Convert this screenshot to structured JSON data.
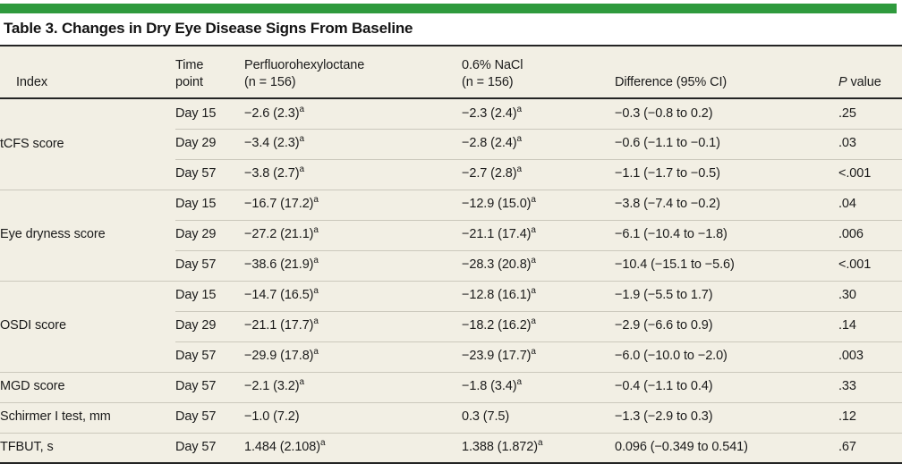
{
  "title": "Table 3. Changes in Dry Eye Disease Signs From Baseline",
  "colors": {
    "accent_bar": "#2f9a3d",
    "table_background": "#f2efe4",
    "dark_rule": "#242424",
    "row_divider": "#cbc8bc"
  },
  "columns": [
    {
      "key": "index",
      "label": "Index"
    },
    {
      "key": "time-point",
      "label": "Time\npoint"
    },
    {
      "key": "pfho",
      "label": "Perfluorohexyloctane\n(n = 156)"
    },
    {
      "key": "nacl",
      "label": "0.6% NaCl\n(n = 156)"
    },
    {
      "key": "difference",
      "label": "Difference (95% CI)"
    },
    {
      "key": "p-value",
      "label": "P value",
      "italic_first_word": true
    }
  ],
  "footnote_marker": "a",
  "groups": [
    {
      "index": "tCFS score",
      "rows": [
        {
          "time": "Day 15",
          "pfho": "−2.6 (2.3)",
          "pfho_sup": "a",
          "nacl": "−2.3 (2.4)",
          "nacl_sup": "a",
          "difference": "−0.3 (−0.8 to 0.2)",
          "p_value": ".25"
        },
        {
          "time": "Day 29",
          "pfho": "−3.4 (2.3)",
          "pfho_sup": "a",
          "nacl": "−2.8 (2.4)",
          "nacl_sup": "a",
          "difference": "−0.6 (−1.1 to −0.1)",
          "p_value": ".03"
        },
        {
          "time": "Day 57",
          "pfho": "−3.8 (2.7)",
          "pfho_sup": "a",
          "nacl": "−2.7 (2.8)",
          "nacl_sup": "a",
          "difference": "−1.1 (−1.7 to −0.5)",
          "p_value": "<.001"
        }
      ]
    },
    {
      "index": "Eye dryness score",
      "rows": [
        {
          "time": "Day 15",
          "pfho": "−16.7 (17.2)",
          "pfho_sup": "a",
          "nacl": "−12.9 (15.0)",
          "nacl_sup": "a",
          "difference": "−3.8 (−7.4 to −0.2)",
          "p_value": ".04"
        },
        {
          "time": "Day 29",
          "pfho": "−27.2 (21.1)",
          "pfho_sup": "a",
          "nacl": "−21.1 (17.4)",
          "nacl_sup": "a",
          "difference": "−6.1 (−10.4 to −1.8)",
          "p_value": ".006"
        },
        {
          "time": "Day 57",
          "pfho": "−38.6 (21.9)",
          "pfho_sup": "a",
          "nacl": "−28.3 (20.8)",
          "nacl_sup": "a",
          "difference": "−10.4 (−15.1 to −5.6)",
          "p_value": "<.001"
        }
      ]
    },
    {
      "index": "OSDI score",
      "rows": [
        {
          "time": "Day 15",
          "pfho": "−14.7 (16.5)",
          "pfho_sup": "a",
          "nacl": "−12.8 (16.1)",
          "nacl_sup": "a",
          "difference": "−1.9 (−5.5 to 1.7)",
          "p_value": ".30"
        },
        {
          "time": "Day 29",
          "pfho": "−21.1 (17.7)",
          "pfho_sup": "a",
          "nacl": "−18.2 (16.2)",
          "nacl_sup": "a",
          "difference": "−2.9 (−6.6 to 0.9)",
          "p_value": ".14"
        },
        {
          "time": "Day 57",
          "pfho": "−29.9 (17.8)",
          "pfho_sup": "a",
          "nacl": "−23.9 (17.7)",
          "nacl_sup": "a",
          "difference": "−6.0 (−10.0 to −2.0)",
          "p_value": ".003"
        }
      ]
    },
    {
      "index": "MGD score",
      "rows": [
        {
          "time": "Day 57",
          "pfho": "−2.1 (3.2)",
          "pfho_sup": "a",
          "nacl": "−1.8 (3.4)",
          "nacl_sup": "a",
          "difference": "−0.4 (−1.1 to 0.4)",
          "p_value": ".33"
        }
      ]
    },
    {
      "index": "Schirmer I test, mm",
      "rows": [
        {
          "time": "Day 57",
          "pfho": "−1.0 (7.2)",
          "pfho_sup": "",
          "nacl": "0.3 (7.5)",
          "nacl_sup": "",
          "difference": "−1.3 (−2.9 to 0.3)",
          "p_value": ".12"
        }
      ]
    },
    {
      "index": "TFBUT, s",
      "rows": [
        {
          "time": "Day 57",
          "pfho": "1.484 (2.108)",
          "pfho_sup": "a",
          "nacl": "1.388 (1.872)",
          "nacl_sup": "a",
          "difference": "0.096 (−0.349 to 0.541)",
          "p_value": ".67"
        }
      ]
    }
  ]
}
